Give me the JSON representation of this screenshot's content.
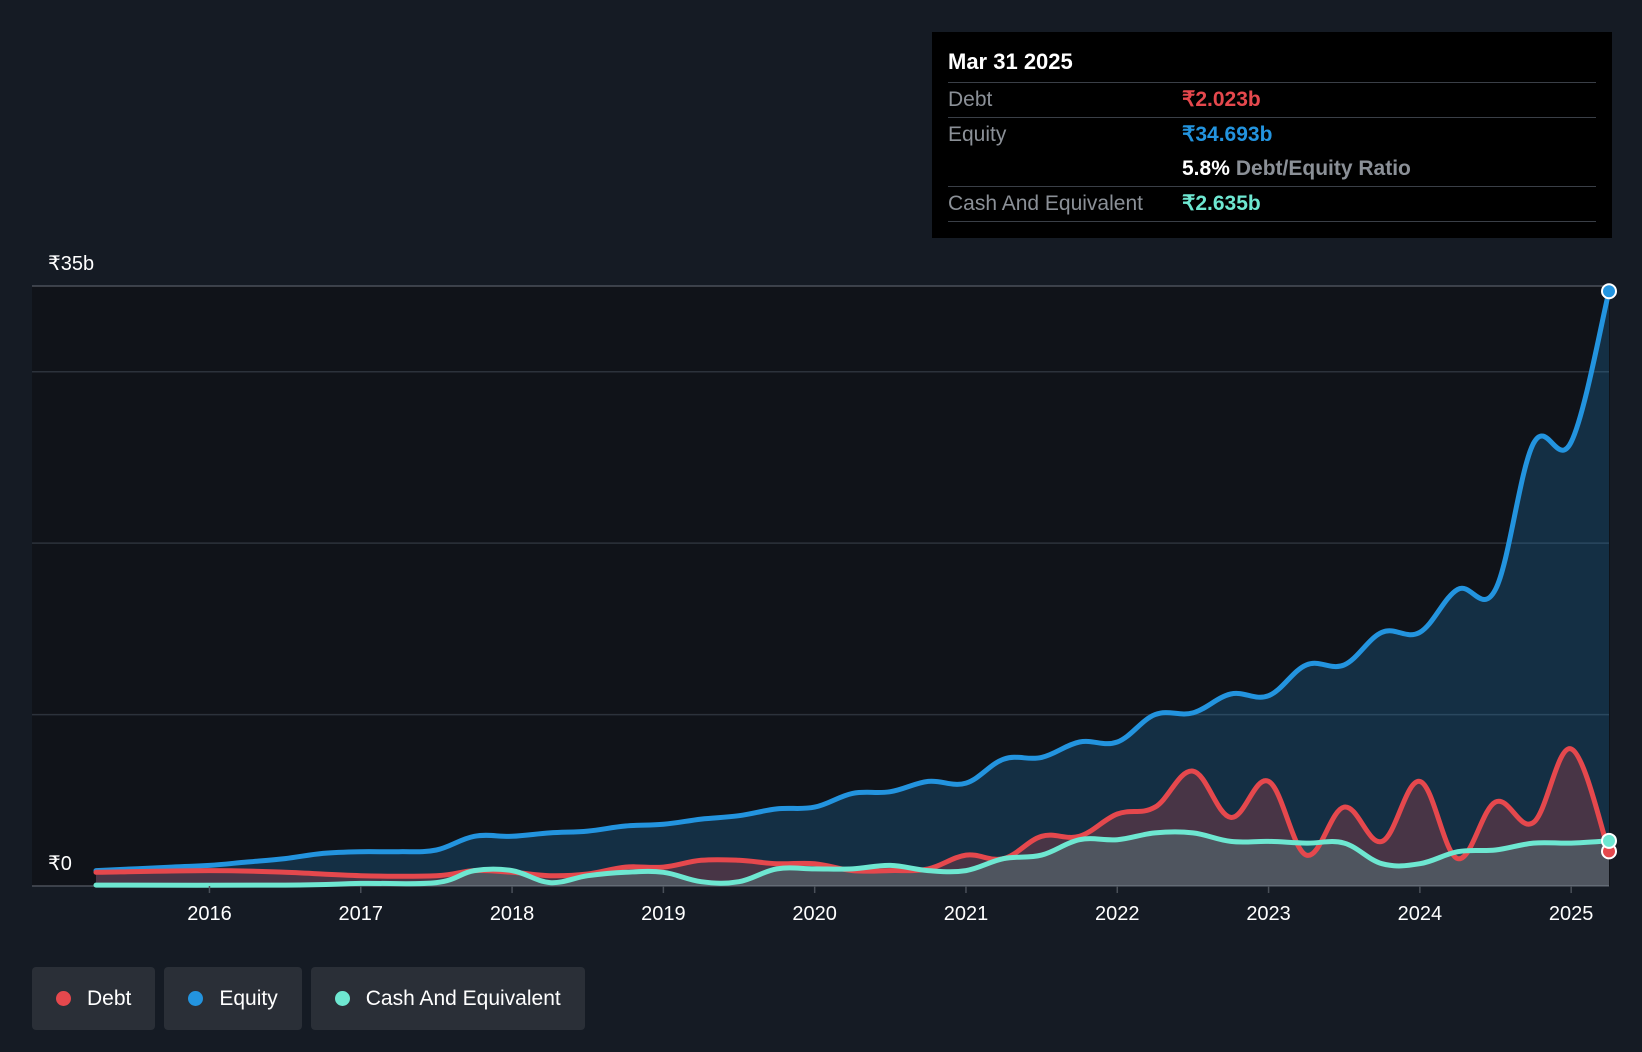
{
  "tooltip": {
    "date": "Mar 31 2025",
    "debt_label": "Debt",
    "debt_value": "₹2.023b",
    "equity_label": "Equity",
    "equity_value": "₹34.693b",
    "ratio_value": "5.8%",
    "ratio_label": "Debt/Equity Ratio",
    "cash_label": "Cash And Equivalent",
    "cash_value": "₹2.635b"
  },
  "legend": [
    {
      "label": "Debt",
      "color": "#e5484d"
    },
    {
      "label": "Equity",
      "color": "#2394df"
    },
    {
      "label": "Cash And Equivalent",
      "color": "#6ee7d1"
    }
  ],
  "chart_data": {
    "type": "line",
    "title": "",
    "xlabel": "",
    "ylabel": "",
    "y_top_label": "₹35b",
    "y_bottom_label": "₹0",
    "ylim": [
      0,
      35
    ],
    "xlim": [
      2015.25,
      2025.25
    ],
    "x_ticks": [
      2016,
      2017,
      2018,
      2019,
      2020,
      2021,
      2022,
      2023,
      2024,
      2025
    ],
    "x_tick_labels": [
      "2016",
      "2017",
      "2018",
      "2019",
      "2020",
      "2021",
      "2022",
      "2023",
      "2024",
      "2025"
    ],
    "gridlines": [
      35,
      30,
      20,
      10
    ],
    "colors": {
      "debt": "#e5484d",
      "equity": "#2394df",
      "cash": "#6ee7d1"
    },
    "series": [
      {
        "name": "Equity",
        "key": "equity",
        "points": [
          [
            2015.25,
            0.9
          ],
          [
            2015.75,
            1.1
          ],
          [
            2016.0,
            1.2
          ],
          [
            2016.25,
            1.4
          ],
          [
            2016.5,
            1.6
          ],
          [
            2016.75,
            1.9
          ],
          [
            2017.0,
            2.0
          ],
          [
            2017.25,
            2.0
          ],
          [
            2017.5,
            2.1
          ],
          [
            2017.75,
            2.9
          ],
          [
            2018.0,
            2.9
          ],
          [
            2018.25,
            3.1
          ],
          [
            2018.5,
            3.2
          ],
          [
            2018.75,
            3.5
          ],
          [
            2019.0,
            3.6
          ],
          [
            2019.25,
            3.9
          ],
          [
            2019.5,
            4.1
          ],
          [
            2019.75,
            4.5
          ],
          [
            2020.0,
            4.6
          ],
          [
            2020.25,
            5.4
          ],
          [
            2020.5,
            5.5
          ],
          [
            2020.75,
            6.1
          ],
          [
            2021.0,
            6.0
          ],
          [
            2021.25,
            7.4
          ],
          [
            2021.5,
            7.5
          ],
          [
            2021.75,
            8.4
          ],
          [
            2022.0,
            8.4
          ],
          [
            2022.25,
            10.0
          ],
          [
            2022.5,
            10.1
          ],
          [
            2022.75,
            11.2
          ],
          [
            2023.0,
            11.1
          ],
          [
            2023.25,
            12.9
          ],
          [
            2023.5,
            12.9
          ],
          [
            2023.75,
            14.8
          ],
          [
            2024.0,
            14.8
          ],
          [
            2024.25,
            17.3
          ],
          [
            2024.5,
            17.3
          ],
          [
            2024.75,
            25.8
          ],
          [
            2025.0,
            25.9
          ],
          [
            2025.25,
            34.693
          ]
        ]
      },
      {
        "name": "Debt",
        "key": "debt",
        "points": [
          [
            2015.25,
            0.8
          ],
          [
            2016.0,
            0.9
          ],
          [
            2016.5,
            0.8
          ],
          [
            2017.0,
            0.6
          ],
          [
            2017.5,
            0.6
          ],
          [
            2017.75,
            0.9
          ],
          [
            2018.0,
            0.8
          ],
          [
            2018.25,
            0.6
          ],
          [
            2018.5,
            0.7
          ],
          [
            2018.75,
            1.1
          ],
          [
            2019.0,
            1.1
          ],
          [
            2019.25,
            1.5
          ],
          [
            2019.5,
            1.5
          ],
          [
            2019.75,
            1.3
          ],
          [
            2020.0,
            1.3
          ],
          [
            2020.25,
            0.9
          ],
          [
            2020.5,
            0.9
          ],
          [
            2020.75,
            1.0
          ],
          [
            2021.0,
            1.8
          ],
          [
            2021.25,
            1.6
          ],
          [
            2021.5,
            2.9
          ],
          [
            2021.75,
            2.9
          ],
          [
            2022.0,
            4.2
          ],
          [
            2022.25,
            4.6
          ],
          [
            2022.5,
            6.7
          ],
          [
            2022.75,
            4.0
          ],
          [
            2023.0,
            6.1
          ],
          [
            2023.25,
            1.8
          ],
          [
            2023.5,
            4.6
          ],
          [
            2023.75,
            2.6
          ],
          [
            2024.0,
            6.1
          ],
          [
            2024.25,
            1.6
          ],
          [
            2024.5,
            4.9
          ],
          [
            2024.75,
            3.7
          ],
          [
            2025.0,
            8.0
          ],
          [
            2025.25,
            2.023
          ]
        ]
      },
      {
        "name": "Cash And Equivalent",
        "key": "cash",
        "points": [
          [
            2015.25,
            0.05
          ],
          [
            2016.5,
            0.05
          ],
          [
            2017.0,
            0.15
          ],
          [
            2017.5,
            0.2
          ],
          [
            2017.75,
            0.9
          ],
          [
            2018.0,
            0.9
          ],
          [
            2018.25,
            0.2
          ],
          [
            2018.5,
            0.6
          ],
          [
            2018.75,
            0.8
          ],
          [
            2019.0,
            0.8
          ],
          [
            2019.25,
            0.25
          ],
          [
            2019.5,
            0.25
          ],
          [
            2019.75,
            1.0
          ],
          [
            2020.0,
            1.0
          ],
          [
            2020.25,
            1.0
          ],
          [
            2020.5,
            1.2
          ],
          [
            2020.75,
            0.9
          ],
          [
            2021.0,
            0.9
          ],
          [
            2021.25,
            1.6
          ],
          [
            2021.5,
            1.8
          ],
          [
            2021.75,
            2.7
          ],
          [
            2022.0,
            2.7
          ],
          [
            2022.25,
            3.1
          ],
          [
            2022.5,
            3.1
          ],
          [
            2022.75,
            2.6
          ],
          [
            2023.0,
            2.6
          ],
          [
            2023.25,
            2.5
          ],
          [
            2023.5,
            2.5
          ],
          [
            2023.75,
            1.3
          ],
          [
            2024.0,
            1.3
          ],
          [
            2024.25,
            2.0
          ],
          [
            2024.5,
            2.1
          ],
          [
            2024.75,
            2.5
          ],
          [
            2025.0,
            2.5
          ],
          [
            2025.25,
            2.635
          ]
        ]
      }
    ]
  }
}
